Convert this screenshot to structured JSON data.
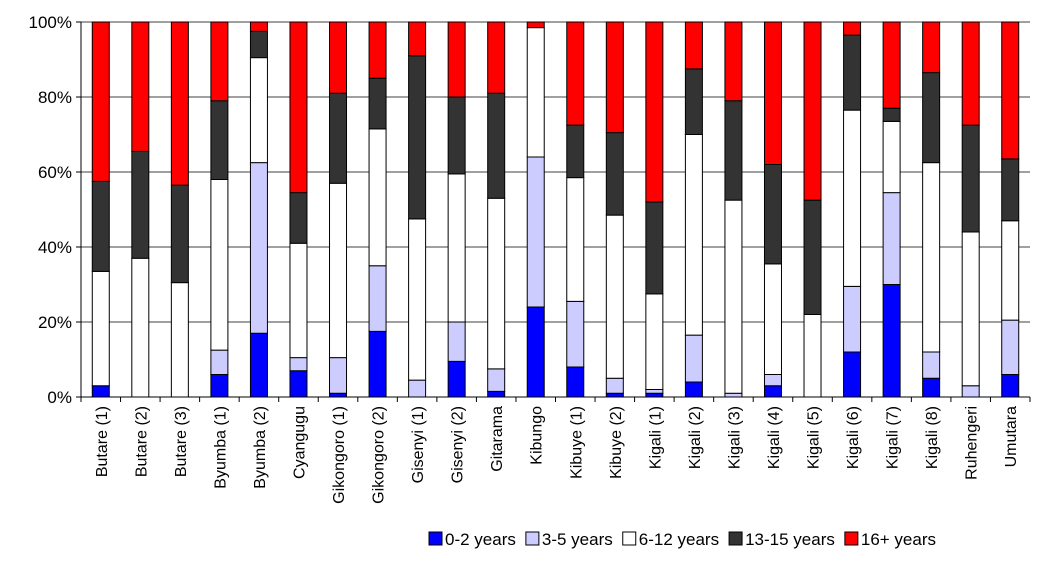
{
  "chart_data": {
    "type": "bar",
    "stacked": true,
    "percent_stacked": true,
    "categories": [
      "Butare (1)",
      "Butare (2)",
      "Butare (3)",
      "Byumba (1)",
      "Byumba (2)",
      "Cyangugu",
      "Gikongoro (1)",
      "Gikongoro (2)",
      "Gisenyi (1)",
      "Gisenyi (2)",
      "Gitarama",
      "Kibungo",
      "Kibuye (1)",
      "Kibuye (2)",
      "Kigali (1)",
      "Kigali (2)",
      "Kigali (3)",
      "Kigali (4)",
      "Kigali (5)",
      "Kigali (6)",
      "Kigali (7)",
      "Kigali (8)",
      "Ruhengeri",
      "Umutara"
    ],
    "series": [
      {
        "name": "0-2 years",
        "color": "#0000ff",
        "values": [
          3,
          0,
          0,
          6,
          17,
          7,
          1,
          17.5,
          0,
          9.5,
          1.5,
          24,
          8,
          1,
          1,
          4,
          0,
          3,
          0,
          12,
          30,
          5,
          0,
          6
        ]
      },
      {
        "name": "3-5 years",
        "color": "#ccccff",
        "values": [
          0,
          0,
          0,
          6.5,
          45.5,
          3.5,
          9.5,
          17.5,
          4.5,
          10.5,
          6,
          40,
          17.5,
          4,
          1,
          12.5,
          1,
          3,
          0,
          17.5,
          24.5,
          7,
          3,
          14.5
        ]
      },
      {
        "name": "6-12 years",
        "color": "#ffffff",
        "values": [
          30.5,
          37,
          30.5,
          45.5,
          28,
          30.5,
          46.5,
          36.5,
          43,
          39.5,
          45.5,
          34.5,
          33,
          43.5,
          25.5,
          53.5,
          51.5,
          29.5,
          22,
          47,
          19,
          50.5,
          41,
          26.5
        ]
      },
      {
        "name": "13-15 years",
        "color": "#333333",
        "values": [
          24,
          28.5,
          26,
          21,
          7,
          13.5,
          24,
          13.5,
          43.5,
          20.5,
          28,
          0,
          14,
          22,
          24.5,
          17.5,
          26.5,
          26.5,
          30.5,
          20,
          3.5,
          24,
          28.5,
          16.5
        ]
      },
      {
        "name": "16+ years",
        "color": "#ff0000",
        "values": [
          42.5,
          34.5,
          43.5,
          21,
          2.5,
          45.5,
          19,
          15,
          9,
          20,
          19,
          1.5,
          27.5,
          29.5,
          48,
          12.5,
          21,
          38,
          47.5,
          3.5,
          23,
          13.5,
          27.5,
          36.5
        ]
      }
    ],
    "y_ticks": [
      "0%",
      "20%",
      "40%",
      "60%",
      "80%",
      "100%"
    ],
    "ylim": [
      0,
      100
    ],
    "grid": true,
    "legend_position": "bottom-right"
  }
}
